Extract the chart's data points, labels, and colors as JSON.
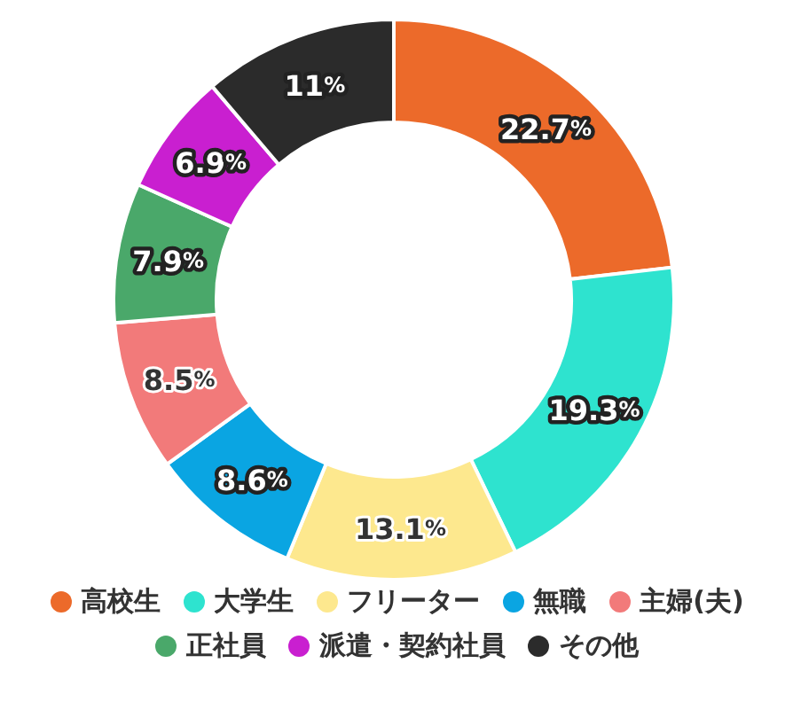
{
  "chart_data": {
    "type": "donut",
    "categories": [
      "高校生",
      "大学生",
      "フリーター",
      "無職",
      "主婦(夫)",
      "正社員",
      "派遣・契約社員",
      "その他"
    ],
    "values": [
      22.7,
      19.3,
      13.1,
      8.6,
      8.5,
      7.9,
      6.9,
      11
    ],
    "value_labels": [
      "22.7%",
      "19.3%",
      "13.1%",
      "8.6%",
      "8.5%",
      "7.9%",
      "6.9%",
      "11%"
    ],
    "colors": [
      "#ec6a2a",
      "#2ee3cf",
      "#fde88e",
      "#0aa5e2",
      "#f27a7a",
      "#4aa86a",
      "#c91fd0",
      "#2b2b2b"
    ],
    "legend": "bottom"
  }
}
